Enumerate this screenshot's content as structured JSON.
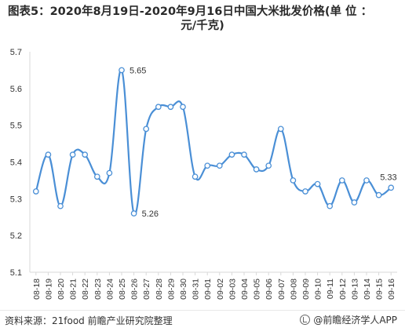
{
  "title_line1": "图表5：2020年8月19日-2020年9月16日中国大米批发价格(单 位 ：",
  "title_line2": "元/千克)",
  "source": "资料来源：21food 前瞻产业研究院整理",
  "brand": "@前瞻经济学人APP",
  "colors": {
    "line": "#4a8fd6",
    "axis": "#d9d9d9",
    "text": "#333333"
  },
  "chart_data": {
    "type": "line",
    "categories": [
      "08-18",
      "08-19",
      "08-20",
      "08-21",
      "08-22",
      "08-23",
      "08-24",
      "08-25",
      "08-26",
      "08-27",
      "08-28",
      "08-29",
      "08-30",
      "08-31",
      "09-01",
      "09-02",
      "09-03",
      "09-04",
      "09-05",
      "09-06",
      "09-07",
      "09-08",
      "09-09",
      "09-10",
      "09-11",
      "09-12",
      "09-13",
      "09-14",
      "09-15",
      "09-16"
    ],
    "values": [
      5.32,
      5.42,
      5.28,
      5.42,
      5.42,
      5.36,
      5.37,
      5.65,
      5.26,
      5.49,
      5.55,
      5.55,
      5.55,
      5.36,
      5.39,
      5.39,
      5.42,
      5.42,
      5.38,
      5.39,
      5.49,
      5.35,
      5.32,
      5.34,
      5.28,
      5.35,
      5.29,
      5.35,
      5.31,
      5.33
    ],
    "ylim": [
      5.1,
      5.7
    ],
    "yticks": [
      "5.1",
      "5.2",
      "5.3",
      "5.4",
      "5.5",
      "5.6",
      "5.7"
    ],
    "annotations": [
      {
        "category": "08-25",
        "value": 5.65,
        "text": "5.65"
      },
      {
        "category": "08-26",
        "value": 5.26,
        "text": "5.26"
      },
      {
        "category": "09-16",
        "value": 5.33,
        "text": "5.33"
      }
    ],
    "grid": false,
    "smooth": true
  }
}
